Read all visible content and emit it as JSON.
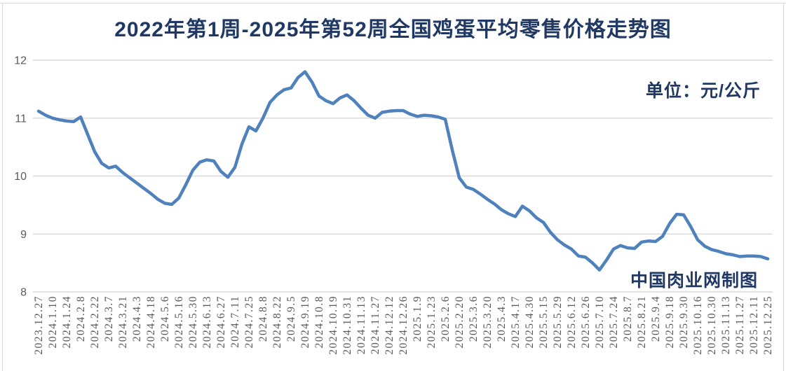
{
  "header": {
    "title": "2022年第1周-2025年第52周全国鸡蛋平均零售价格走势图"
  },
  "annotations": {
    "unit_label": "单位：元/公斤",
    "watermark": "中国肉业网制图"
  },
  "chart_data": {
    "type": "line",
    "title": "2022年第1周-2025年第52周全国鸡蛋平均零售价格走势图",
    "unit": "元/公斤",
    "xlabel": "",
    "ylabel": "",
    "legend_position": "none",
    "grid": true,
    "x_label_rotation_degrees": 90,
    "y_axis": {
      "min": 8,
      "max": 12,
      "ticks": [
        8,
        9,
        10,
        11,
        12
      ]
    },
    "x_labels": [
      "2023.12.27",
      "2024.1.10",
      "2024.1.24",
      "2024.2.8",
      "2024.2.22",
      "2024.3.7",
      "2024.3.21",
      "2024.4.3",
      "2024.4.18",
      "2024.5.6",
      "2024.5.16",
      "2024.5.30",
      "2024.6.13",
      "2024.6.27",
      "2024.7.11",
      "2024.7.25",
      "2024.8.8",
      "2024.8.22",
      "2024.9.5",
      "2024.9.19",
      "2024.10.8",
      "2024.10.19",
      "2024.10.31",
      "2024.11.13",
      "2024.11.27",
      "2024.12.12",
      "2024.12.26",
      "2025.1.9",
      "2025.1.23",
      "2025.2.6",
      "2025.2.20",
      "2025.3.6",
      "2025.3.20",
      "2025.4.3",
      "2025.4.17",
      "2025.4.30",
      "2025.5.15",
      "2025.5.29",
      "2025.6.12",
      "2025.6.26",
      "2025.7.10",
      "2025.7.24",
      "2025.8.7",
      "2025.8.21",
      "2025.9.4",
      "2025.9.18",
      "2025.9.30",
      "2025.10.16",
      "2025.10.30",
      "2025.11.13",
      "2025.11.27",
      "2025.12.11",
      "2025.12.25"
    ],
    "points_per_label_interval": 2,
    "values": [
      11.12,
      11.05,
      11.0,
      10.97,
      10.95,
      10.94,
      11.02,
      10.72,
      10.42,
      10.22,
      10.14,
      10.17,
      10.06,
      9.97,
      9.88,
      9.79,
      9.7,
      9.6,
      9.53,
      9.51,
      9.62,
      9.85,
      10.1,
      10.24,
      10.28,
      10.26,
      10.08,
      9.98,
      10.15,
      10.55,
      10.85,
      10.78,
      11.0,
      11.27,
      11.4,
      11.49,
      11.52,
      11.7,
      11.8,
      11.62,
      11.38,
      11.3,
      11.25,
      11.35,
      11.4,
      11.3,
      11.17,
      11.05,
      11.0,
      11.1,
      11.12,
      11.13,
      11.13,
      11.07,
      11.03,
      11.05,
      11.04,
      11.02,
      10.98,
      10.45,
      9.97,
      9.81,
      9.77,
      9.69,
      9.6,
      9.52,
      9.42,
      9.35,
      9.3,
      9.48,
      9.4,
      9.28,
      9.2,
      9.03,
      8.9,
      8.81,
      8.74,
      8.62,
      8.6,
      8.5,
      8.38,
      8.55,
      8.74,
      8.8,
      8.76,
      8.75,
      8.86,
      8.88,
      8.87,
      8.96,
      9.18,
      9.34,
      9.33,
      9.13,
      8.9,
      8.79,
      8.73,
      8.7,
      8.66,
      8.64,
      8.61,
      8.62,
      8.62,
      8.61,
      8.57
    ],
    "colors": {
      "line": "#4f81bd",
      "gridline": "#d9d9d9",
      "title": "#1f3864",
      "axis_label": "#595959"
    }
  }
}
